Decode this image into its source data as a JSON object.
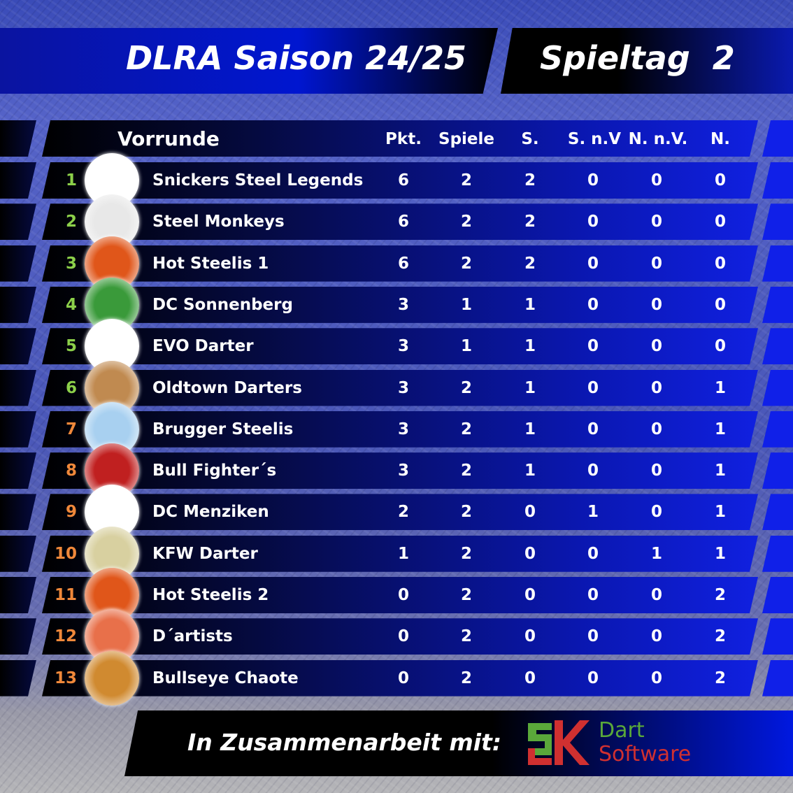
{
  "title": {
    "season": "DLRA Saison 24/25",
    "matchday": "Spieltag  2"
  },
  "table": {
    "round_label": "Vorrunde",
    "columns": [
      "Pkt.",
      "Spiele",
      "S.",
      "S. n.V",
      "N. n.V.",
      "N."
    ],
    "rank_colors": {
      "top": "#8cd04a",
      "rest": "#f0883a"
    },
    "rows": [
      {
        "rank": "1",
        "team": "Snickers Steel Legends",
        "values": [
          "6",
          "2",
          "2",
          "0",
          "0",
          "0"
        ],
        "logo_color": "#ffffff"
      },
      {
        "rank": "2",
        "team": "Steel Monkeys",
        "values": [
          "6",
          "2",
          "2",
          "0",
          "0",
          "0"
        ],
        "logo_color": "#e8e8e8"
      },
      {
        "rank": "3",
        "team": "Hot Steelis 1",
        "values": [
          "6",
          "2",
          "2",
          "0",
          "0",
          "0"
        ],
        "logo_color": "#e0561a"
      },
      {
        "rank": "4",
        "team": "DC Sonnenberg",
        "values": [
          "3",
          "1",
          "1",
          "0",
          "0",
          "0"
        ],
        "logo_color": "#3a9a3a"
      },
      {
        "rank": "5",
        "team": "EVO Darter",
        "values": [
          "3",
          "1",
          "1",
          "0",
          "0",
          "0"
        ],
        "logo_color": "#ffffff"
      },
      {
        "rank": "6",
        "team": "Oldtown Darters",
        "values": [
          "3",
          "2",
          "1",
          "0",
          "0",
          "1"
        ],
        "logo_color": "#c08a50"
      },
      {
        "rank": "7",
        "team": "Brugger Steelis",
        "values": [
          "3",
          "2",
          "1",
          "0",
          "0",
          "1"
        ],
        "logo_color": "#a8d0f0"
      },
      {
        "rank": "8",
        "team": "Bull Fighter´s",
        "values": [
          "3",
          "2",
          "1",
          "0",
          "0",
          "1"
        ],
        "logo_color": "#c02020"
      },
      {
        "rank": "9",
        "team": "DC Menziken",
        "values": [
          "2",
          "2",
          "0",
          "1",
          "0",
          "1"
        ],
        "logo_color": "#ffffff"
      },
      {
        "rank": "10",
        "team": "KFW Darter",
        "values": [
          "1",
          "2",
          "0",
          "0",
          "1",
          "1"
        ],
        "logo_color": "#d8d0a0"
      },
      {
        "rank": "11",
        "team": "Hot Steelis 2",
        "values": [
          "0",
          "2",
          "0",
          "0",
          "0",
          "2"
        ],
        "logo_color": "#e0561a"
      },
      {
        "rank": "12",
        "team": "D´artists",
        "values": [
          "0",
          "2",
          "0",
          "0",
          "0",
          "2"
        ],
        "logo_color": "#e8704a"
      },
      {
        "rank": "13",
        "team": "Bullseye Chaote",
        "values": [
          "0",
          "2",
          "0",
          "0",
          "0",
          "2"
        ],
        "logo_color": "#d08a30"
      }
    ]
  },
  "footer": {
    "text": "In Zusammenarbeit mit:",
    "sponsor_line1": "Dart",
    "sponsor_line2": "Software",
    "sponsor_colors": {
      "green": "#5aa83a",
      "red": "#d03030"
    }
  }
}
